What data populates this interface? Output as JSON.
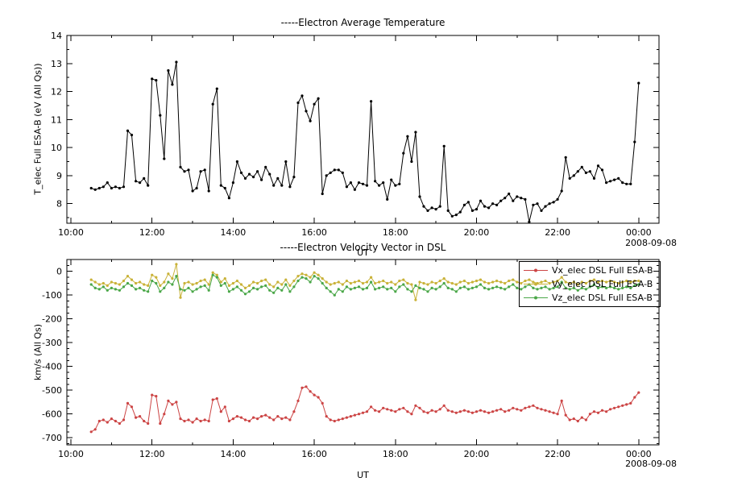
{
  "page": {
    "background": "#ffffff",
    "text_color": "#000000"
  },
  "chart_data": [
    {
      "name": "electron-average-temperature",
      "type": "line",
      "title": "-----Electron Average Temperature",
      "xlabel": "UT",
      "ylabel": "T_elec Full ESA-B (eV (All Qs))",
      "date_label": "2008-09-08",
      "xlim": [
        9.9,
        24.5
      ],
      "ylim": [
        7.3,
        14
      ],
      "xticks": [
        10,
        12,
        14,
        16,
        18,
        20,
        22,
        24
      ],
      "xtick_labels": [
        "10:00",
        "12:00",
        "14:00",
        "16:00",
        "18:00",
        "20:00",
        "22:00",
        "00:00"
      ],
      "yticks": [
        8,
        9,
        10,
        11,
        12,
        13,
        14
      ],
      "xminor": 1,
      "yminor": 0.5,
      "grid": false,
      "legend": null,
      "color": "#000000",
      "series_name": "T_elec Full ESA-B",
      "x": [
        10.5,
        10.6,
        10.7,
        10.8,
        10.9,
        11.0,
        11.1,
        11.2,
        11.3,
        11.4,
        11.5,
        11.6,
        11.7,
        11.8,
        11.9,
        12.0,
        12.1,
        12.2,
        12.3,
        12.4,
        12.5,
        12.6,
        12.7,
        12.8,
        12.9,
        13.0,
        13.1,
        13.2,
        13.3,
        13.4,
        13.5,
        13.6,
        13.7,
        13.8,
        13.9,
        14.0,
        14.1,
        14.2,
        14.3,
        14.4,
        14.5,
        14.6,
        14.7,
        14.8,
        14.9,
        15.0,
        15.1,
        15.2,
        15.3,
        15.4,
        15.5,
        15.6,
        15.7,
        15.8,
        15.9,
        16.0,
        16.1,
        16.2,
        16.3,
        16.4,
        16.5,
        16.6,
        16.7,
        16.8,
        16.9,
        17.0,
        17.1,
        17.2,
        17.3,
        17.4,
        17.5,
        17.6,
        17.7,
        17.8,
        17.9,
        18.0,
        18.1,
        18.2,
        18.3,
        18.4,
        18.5,
        18.6,
        18.7,
        18.8,
        18.9,
        19.0,
        19.1,
        19.2,
        19.3,
        19.4,
        19.5,
        19.6,
        19.7,
        19.8,
        19.9,
        20.0,
        20.1,
        20.2,
        20.3,
        20.4,
        20.5,
        20.6,
        20.7,
        20.8,
        20.9,
        21.0,
        21.1,
        21.2,
        21.3,
        21.4,
        21.5,
        21.6,
        21.7,
        21.8,
        21.9,
        22.0,
        22.1,
        22.2,
        22.3,
        22.4,
        22.5,
        22.6,
        22.7,
        22.8,
        22.9,
        23.0,
        23.1,
        23.2,
        23.3,
        23.4,
        23.5,
        23.6,
        23.7,
        23.8,
        23.9,
        24.0
      ],
      "values": [
        8.55,
        8.5,
        8.55,
        8.6,
        8.75,
        8.55,
        8.6,
        8.55,
        8.6,
        10.6,
        10.45,
        8.8,
        8.75,
        8.9,
        8.65,
        12.45,
        12.4,
        11.15,
        9.6,
        12.75,
        12.25,
        13.05,
        9.3,
        9.15,
        9.2,
        8.45,
        8.55,
        9.15,
        9.2,
        8.45,
        11.55,
        12.1,
        8.65,
        8.55,
        8.2,
        8.75,
        9.5,
        9.1,
        8.9,
        9.05,
        8.95,
        9.15,
        8.85,
        9.3,
        9.05,
        8.65,
        8.9,
        8.65,
        9.5,
        8.6,
        8.95,
        11.6,
        11.85,
        11.3,
        10.95,
        11.55,
        11.75,
        8.35,
        9.0,
        9.1,
        9.2,
        9.2,
        9.1,
        8.6,
        8.75,
        8.5,
        8.75,
        8.7,
        8.65,
        11.65,
        8.8,
        8.65,
        8.75,
        8.15,
        8.85,
        8.65,
        8.7,
        9.8,
        10.4,
        9.5,
        10.55,
        8.25,
        7.9,
        7.75,
        7.85,
        7.8,
        7.9,
        10.05,
        7.75,
        7.55,
        7.6,
        7.7,
        7.95,
        8.05,
        7.75,
        7.8,
        8.1,
        7.9,
        7.85,
        8.0,
        7.95,
        8.1,
        8.2,
        8.35,
        8.1,
        8.25,
        8.2,
        8.15,
        7.35,
        7.95,
        8.0,
        7.75,
        7.9,
        8.0,
        8.05,
        8.15,
        8.45,
        9.65,
        8.9,
        9.0,
        9.15,
        9.3,
        9.1,
        9.15,
        8.9,
        9.35,
        9.2,
        8.75,
        8.8,
        8.85,
        8.9,
        8.75,
        8.7,
        8.7,
        10.2,
        12.3
      ]
    },
    {
      "name": "electron-velocity-vector-dsl",
      "type": "line",
      "title": "-----Electron Velocity Vector in DSL",
      "xlabel": "UT",
      "ylabel": "km/s (All Qs)",
      "date_label": "2008-09-08",
      "xlim": [
        9.9,
        24.5
      ],
      "ylim": [
        -730,
        50
      ],
      "xticks": [
        10,
        12,
        14,
        16,
        18,
        20,
        22,
        24
      ],
      "xtick_labels": [
        "10:00",
        "12:00",
        "14:00",
        "16:00",
        "18:00",
        "20:00",
        "22:00",
        "00:00"
      ],
      "yticks": [
        0,
        -100,
        -200,
        -300,
        -400,
        -500,
        -600,
        -700
      ],
      "xminor": 1,
      "yminor": 25,
      "grid": false,
      "legend": {
        "position": "top-right"
      },
      "x": [
        10.5,
        10.6,
        10.7,
        10.8,
        10.9,
        11.0,
        11.1,
        11.2,
        11.3,
        11.4,
        11.5,
        11.6,
        11.7,
        11.8,
        11.9,
        12.0,
        12.1,
        12.2,
        12.3,
        12.4,
        12.5,
        12.6,
        12.7,
        12.8,
        12.9,
        13.0,
        13.1,
        13.2,
        13.3,
        13.4,
        13.5,
        13.6,
        13.7,
        13.8,
        13.9,
        14.0,
        14.1,
        14.2,
        14.3,
        14.4,
        14.5,
        14.6,
        14.7,
        14.8,
        14.9,
        15.0,
        15.1,
        15.2,
        15.3,
        15.4,
        15.5,
        15.6,
        15.7,
        15.8,
        15.9,
        16.0,
        16.1,
        16.2,
        16.3,
        16.4,
        16.5,
        16.6,
        16.7,
        16.8,
        16.9,
        17.0,
        17.1,
        17.2,
        17.3,
        17.4,
        17.5,
        17.6,
        17.7,
        17.8,
        17.9,
        18.0,
        18.1,
        18.2,
        18.3,
        18.4,
        18.5,
        18.6,
        18.7,
        18.8,
        18.9,
        19.0,
        19.1,
        19.2,
        19.3,
        19.4,
        19.5,
        19.6,
        19.7,
        19.8,
        19.9,
        20.0,
        20.1,
        20.2,
        20.3,
        20.4,
        20.5,
        20.6,
        20.7,
        20.8,
        20.9,
        21.0,
        21.1,
        21.2,
        21.3,
        21.4,
        21.5,
        21.6,
        21.7,
        21.8,
        21.9,
        22.0,
        22.1,
        22.2,
        22.3,
        22.4,
        22.5,
        22.6,
        22.7,
        22.8,
        22.9,
        23.0,
        23.1,
        23.2,
        23.3,
        23.4,
        23.5,
        23.6,
        23.7,
        23.8,
        23.9,
        24.0
      ],
      "series": [
        {
          "name": "Vx_elec DSL Full ESA-B",
          "color": "#cc4444",
          "values": [
            -675,
            -665,
            -630,
            -625,
            -635,
            -620,
            -630,
            -640,
            -625,
            -555,
            -570,
            -615,
            -610,
            -630,
            -640,
            -520,
            -525,
            -640,
            -600,
            -545,
            -560,
            -550,
            -620,
            -630,
            -625,
            -635,
            -620,
            -630,
            -625,
            -630,
            -540,
            -535,
            -590,
            -570,
            -630,
            -620,
            -610,
            -615,
            -625,
            -630,
            -615,
            -620,
            -610,
            -605,
            -615,
            -625,
            -610,
            -620,
            -615,
            -625,
            -590,
            -545,
            -490,
            -485,
            -505,
            -520,
            -530,
            -555,
            -610,
            -625,
            -630,
            -625,
            -620,
            -615,
            -610,
            -605,
            -600,
            -595,
            -590,
            -570,
            -585,
            -590,
            -575,
            -580,
            -585,
            -590,
            -580,
            -575,
            -590,
            -600,
            -565,
            -575,
            -590,
            -595,
            -585,
            -590,
            -580,
            -565,
            -585,
            -590,
            -595,
            -590,
            -585,
            -590,
            -595,
            -590,
            -585,
            -590,
            -595,
            -590,
            -585,
            -580,
            -590,
            -585,
            -575,
            -580,
            -585,
            -575,
            -570,
            -565,
            -575,
            -580,
            -585,
            -590,
            -595,
            -600,
            -545,
            -605,
            -625,
            -620,
            -630,
            -615,
            -625,
            -600,
            -590,
            -595,
            -585,
            -590,
            -580,
            -575,
            -570,
            -565,
            -560,
            -555,
            -530,
            -510
          ]
        },
        {
          "name": "Vy_elec DSL Full ESA-B",
          "color": "#c9b238",
          "values": [
            -35,
            -45,
            -55,
            -50,
            -60,
            -45,
            -50,
            -55,
            -40,
            -20,
            -35,
            -50,
            -45,
            -55,
            -60,
            -15,
            -25,
            -60,
            -45,
            -10,
            -30,
            30,
            -110,
            -50,
            -45,
            -55,
            -50,
            -40,
            -35,
            -55,
            -5,
            -15,
            -45,
            -30,
            -60,
            -50,
            -40,
            -55,
            -70,
            -60,
            -45,
            -50,
            -40,
            -35,
            -55,
            -65,
            -45,
            -55,
            -35,
            -60,
            -40,
            -20,
            -10,
            -15,
            -25,
            -5,
            -15,
            -30,
            -45,
            -55,
            -50,
            -45,
            -55,
            -40,
            -50,
            -45,
            -40,
            -50,
            -45,
            -25,
            -50,
            -45,
            -40,
            -50,
            -45,
            -55,
            -40,
            -35,
            -50,
            -55,
            -120,
            -45,
            -50,
            -55,
            -45,
            -50,
            -40,
            -30,
            -45,
            -50,
            -55,
            -45,
            -40,
            -50,
            -45,
            -40,
            -35,
            -45,
            -50,
            -45,
            -40,
            -45,
            -50,
            -40,
            -35,
            -45,
            -50,
            -40,
            -35,
            -45,
            -50,
            -45,
            -40,
            -50,
            -45,
            -40,
            -25,
            -45,
            -50,
            -45,
            -55,
            -45,
            -50,
            -40,
            -35,
            -45,
            -40,
            -45,
            -40,
            -45,
            -50,
            -45,
            -40,
            -45,
            -40,
            -40
          ]
        },
        {
          "name": "Vz_elec DSL Full ESA-B",
          "color": "#4aa748",
          "values": [
            -55,
            -70,
            -75,
            -65,
            -80,
            -70,
            -75,
            -80,
            -65,
            -50,
            -60,
            -75,
            -70,
            -80,
            -85,
            -40,
            -50,
            -85,
            -70,
            -45,
            -55,
            -20,
            -75,
            -80,
            -70,
            -85,
            -75,
            -65,
            -60,
            -80,
            -15,
            -25,
            -60,
            -50,
            -85,
            -75,
            -65,
            -80,
            -95,
            -85,
            -70,
            -75,
            -65,
            -60,
            -80,
            -90,
            -70,
            -80,
            -55,
            -85,
            -65,
            -40,
            -25,
            -30,
            -45,
            -20,
            -30,
            -50,
            -70,
            -85,
            -100,
            -75,
            -85,
            -65,
            -75,
            -70,
            -65,
            -75,
            -70,
            -45,
            -75,
            -70,
            -65,
            -75,
            -70,
            -85,
            -65,
            -55,
            -75,
            -85,
            -60,
            -70,
            -75,
            -85,
            -70,
            -75,
            -65,
            -50,
            -70,
            -75,
            -85,
            -70,
            -65,
            -75,
            -70,
            -65,
            -55,
            -70,
            -75,
            -70,
            -65,
            -70,
            -75,
            -65,
            -55,
            -70,
            -75,
            -65,
            -55,
            -70,
            -75,
            -70,
            -65,
            -75,
            -70,
            -65,
            -45,
            -70,
            -75,
            -70,
            -80,
            -70,
            -75,
            -65,
            -55,
            -70,
            -65,
            -70,
            -65,
            -70,
            -75,
            -70,
            -65,
            -70,
            -60,
            -55
          ]
        }
      ]
    }
  ]
}
